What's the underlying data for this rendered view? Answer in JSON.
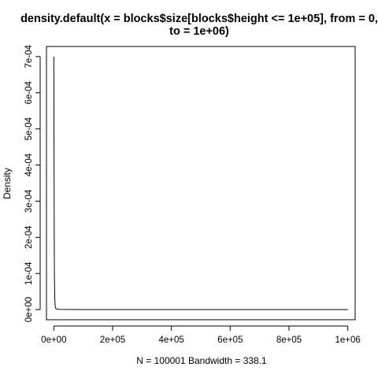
{
  "chart_data": {
    "type": "line",
    "title_line1": "density.default(x = blocks$size[blocks$height <= 1e+05], from = 0,",
    "title_line2": "to = 1e+06)",
    "ylabel": "Density",
    "xlabel": "N = 100001   Bandwidth = 338.1",
    "xlim": [
      -25000,
      1025000
    ],
    "ylim": [
      -2.8e-05,
      0.000728
    ],
    "x_ticks": [
      0,
      200000,
      400000,
      600000,
      800000,
      1000000
    ],
    "x_tick_labels": [
      "0e+00",
      "2e+05",
      "4e+05",
      "6e+05",
      "8e+05",
      "1e+06"
    ],
    "y_ticks": [
      0,
      0.0001,
      0.0002,
      0.0003,
      0.0004,
      0.0005,
      0.0006,
      0.0007
    ],
    "y_tick_labels": [
      "0e+00",
      "1e-04",
      "2e-04",
      "3e-04",
      "4e-04",
      "5e-04",
      "6e-04",
      "7e-04"
    ],
    "grid": false,
    "series": [
      {
        "x": [
          0,
          200,
          400,
          800,
          1200,
          1600,
          2000,
          3000,
          4000,
          5000,
          7000,
          10000,
          20000,
          100000,
          300000,
          600000,
          1000000
        ],
        "y": [
          0.0007,
          0.00066,
          0.00058,
          0.00042,
          0.00028,
          0.00017,
          0.0001,
          4e-05,
          1.8e-05,
          8e-06,
          3e-06,
          1.5e-06,
          5e-07,
          1e-07,
          2e-08,
          1e-08,
          0.0
        ]
      }
    ]
  }
}
